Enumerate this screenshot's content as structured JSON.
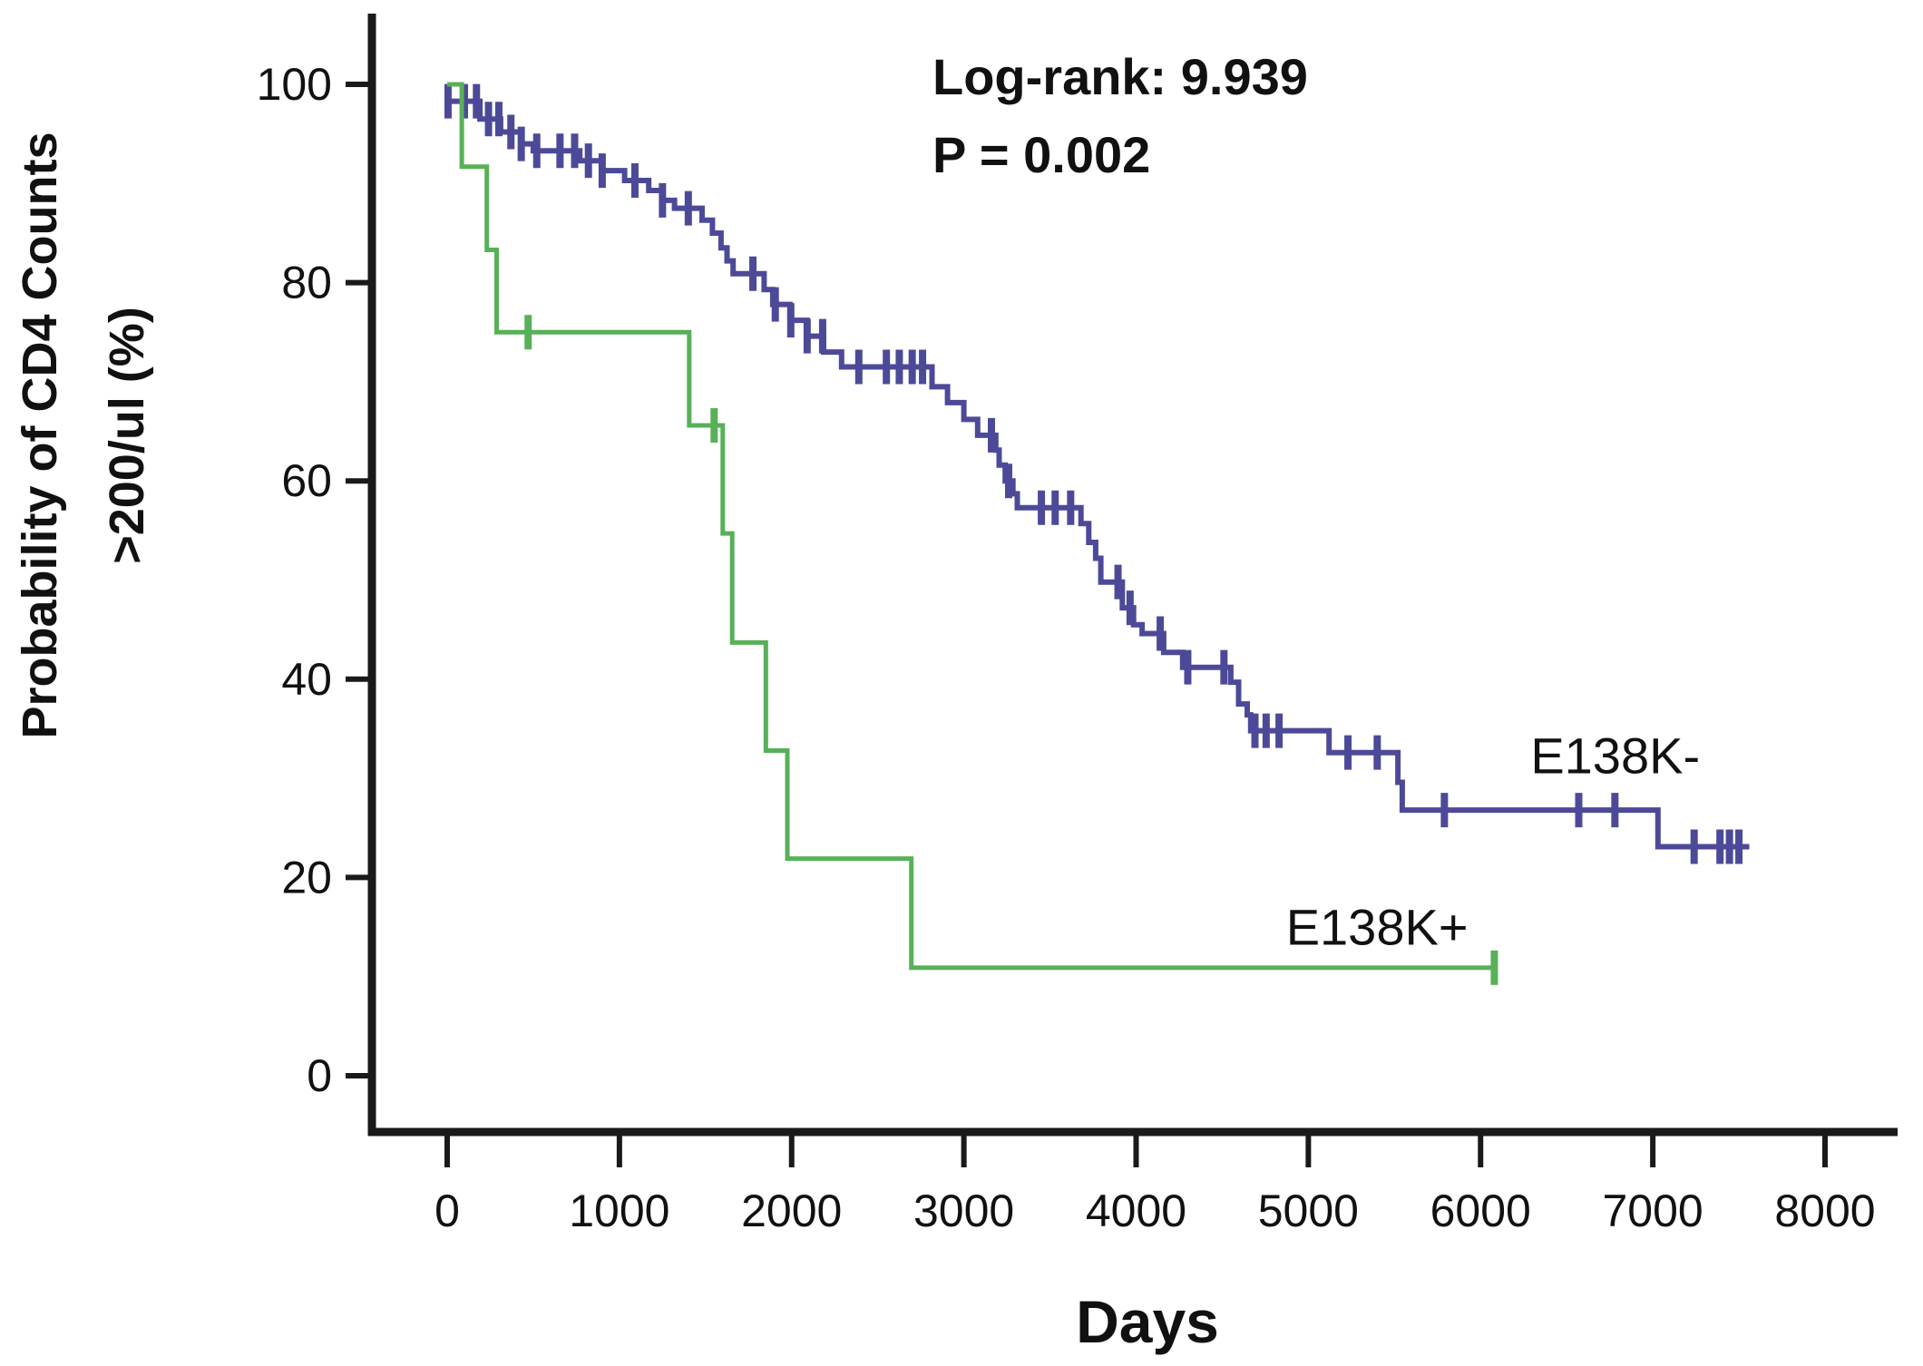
{
  "figure": {
    "annotation": {
      "line1": "Log-rank: 9.939",
      "line2": "P = 0.002"
    },
    "x_axis": {
      "title": "Days",
      "ticks": [
        0,
        1000,
        2000,
        3000,
        4000,
        5000,
        6000,
        7000,
        8000
      ]
    },
    "y_axis": {
      "title_line1": "Probability of CD4 Counts",
      "title_line2": ">200/ul (%)",
      "ticks": [
        0,
        20,
        40,
        60,
        80,
        100
      ]
    }
  },
  "chart_data": {
    "type": "line",
    "subtype": "kaplan-meier-step",
    "title": "",
    "xlabel": "Days",
    "ylabel": "Probability of CD4 Counts >200/ul (%)",
    "xlim": [
      0,
      8000
    ],
    "ylim": [
      0,
      100
    ],
    "grid": false,
    "legend_position": "inline-labels",
    "annotations": [
      "Log-rank: 9.939",
      "P = 0.002"
    ],
    "axis_color": "#1a1a1a",
    "series": [
      {
        "name": "E138K-",
        "color": "#4c4a98",
        "stroke_width": 6,
        "label_pos": {
          "t": 6290,
          "p": 30.5
        },
        "steps": [
          [
            0,
            98.3
          ],
          [
            190,
            96.5
          ],
          [
            310,
            95.2
          ],
          [
            430,
            94.0
          ],
          [
            500,
            93.3
          ],
          [
            770,
            92.3
          ],
          [
            900,
            91.3
          ],
          [
            1030,
            90.3
          ],
          [
            1170,
            89.3
          ],
          [
            1250,
            88.3
          ],
          [
            1320,
            87.5
          ],
          [
            1480,
            86.3
          ],
          [
            1540,
            85.0
          ],
          [
            1590,
            83.5
          ],
          [
            1625,
            82.2
          ],
          [
            1660,
            80.9
          ],
          [
            1840,
            79.3
          ],
          [
            1890,
            77.8
          ],
          [
            1990,
            76.2
          ],
          [
            2090,
            74.6
          ],
          [
            2185,
            73.0
          ],
          [
            2290,
            71.5
          ],
          [
            2815,
            69.5
          ],
          [
            2905,
            67.9
          ],
          [
            3000,
            66.2
          ],
          [
            3080,
            64.6
          ],
          [
            3185,
            63.1
          ],
          [
            3205,
            61.6
          ],
          [
            3240,
            60.0
          ],
          [
            3285,
            58.7
          ],
          [
            3310,
            57.3
          ],
          [
            3680,
            55.7
          ],
          [
            3725,
            53.8
          ],
          [
            3765,
            52.2
          ],
          [
            3795,
            49.8
          ],
          [
            3920,
            47.2
          ],
          [
            3985,
            45.5
          ],
          [
            4035,
            44.6
          ],
          [
            4160,
            42.7
          ],
          [
            4270,
            41.2
          ],
          [
            4550,
            39.7
          ],
          [
            4595,
            37.5
          ],
          [
            4645,
            36.4
          ],
          [
            4665,
            34.8
          ],
          [
            5120,
            32.6
          ],
          [
            5520,
            29.6
          ],
          [
            5545,
            26.8
          ],
          [
            7030,
            23.1
          ]
        ],
        "end": 7560,
        "censors": [
          5,
          100,
          170,
          240,
          300,
          370,
          430,
          520,
          655,
          740,
          820,
          900,
          1090,
          1250,
          1400,
          1775,
          1905,
          1995,
          2090,
          2180,
          2390,
          2550,
          2625,
          2700,
          2760,
          3160,
          3260,
          3450,
          3530,
          3620,
          3895,
          3965,
          4140,
          4300,
          4510,
          4690,
          4755,
          4830,
          5230,
          5400,
          5790,
          6570,
          6780,
          7240,
          7390,
          7445,
          7500
        ]
      },
      {
        "name": "E138K+",
        "color": "#58b058",
        "stroke_width": 5,
        "label_pos": {
          "t": 4870,
          "p": 13.2
        },
        "steps": [
          [
            0,
            100
          ],
          [
            85,
            91.7
          ],
          [
            230,
            83.3
          ],
          [
            287,
            75.0
          ],
          [
            1405,
            65.6
          ],
          [
            1600,
            54.7
          ],
          [
            1655,
            43.7
          ],
          [
            1850,
            32.8
          ],
          [
            1975,
            21.9
          ],
          [
            2695,
            10.9
          ]
        ],
        "end": 6085,
        "censors": [
          470,
          1550,
          6080
        ]
      }
    ]
  }
}
